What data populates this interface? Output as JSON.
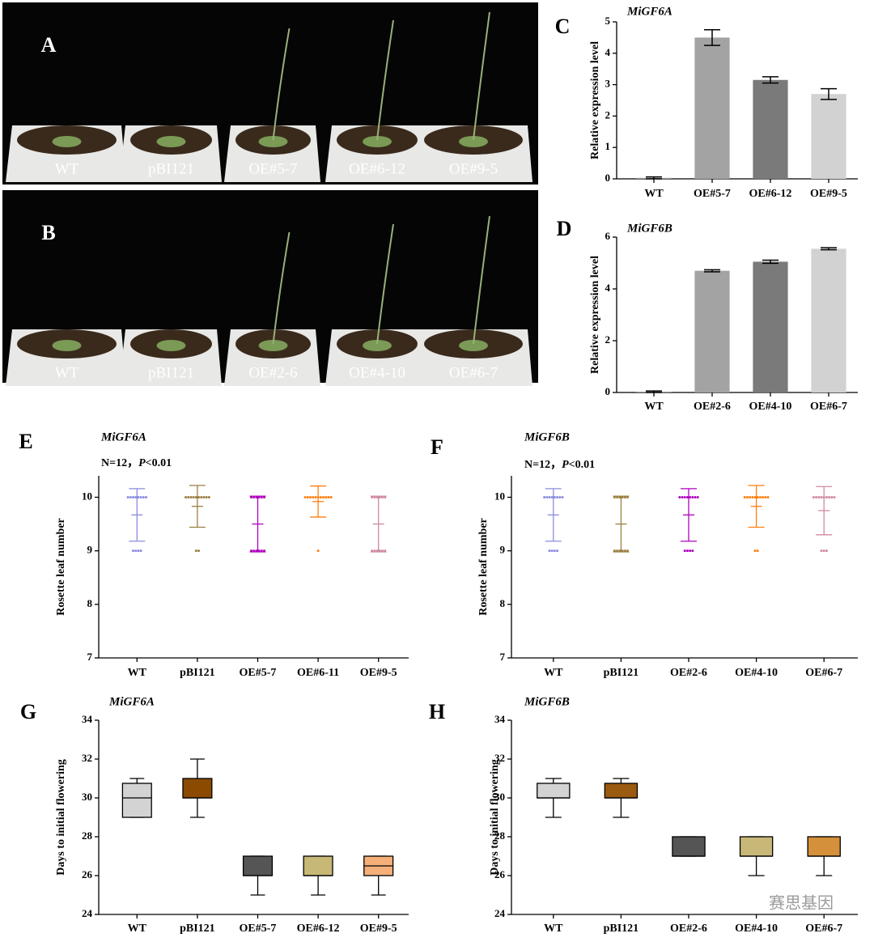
{
  "photos": [
    {
      "panel": "A",
      "pots": [
        "WT",
        "pBI121",
        "OE#5-7",
        "OE#6-12",
        "OE#9-5"
      ]
    },
    {
      "panel": "B",
      "pots": [
        "WT",
        "pBI121",
        "OE#2-6",
        "OE#4-10",
        "OE#6-7"
      ]
    }
  ],
  "chart_data": [
    {
      "type": "bar",
      "panel": "C",
      "title": "MiGF6A",
      "ylabel": "Relative expression level",
      "categories": [
        "WT",
        "OE#5-7",
        "OE#6-12",
        "OE#9-5"
      ],
      "values": [
        0.03,
        4.5,
        3.15,
        2.7
      ],
      "errors": [
        0.03,
        0.25,
        0.1,
        0.17
      ],
      "colors": [
        "#9a9a9a",
        "#a3a3a3",
        "#7a7a7a",
        "#d2d2d2"
      ],
      "ylim": [
        0,
        5
      ],
      "yticks": [
        0,
        1,
        2,
        3,
        4,
        5
      ]
    },
    {
      "type": "bar",
      "panel": "D",
      "title": "MiGF6B",
      "ylabel": "Relative expression level",
      "categories": [
        "WT",
        "OE#2-6",
        "OE#4-10",
        "OE#6-7"
      ],
      "values": [
        0.03,
        4.7,
        5.05,
        5.55
      ],
      "errors": [
        0.03,
        0.04,
        0.06,
        0.04
      ],
      "colors": [
        "#9a9a9a",
        "#a3a3a3",
        "#7a7a7a",
        "#d2d2d2"
      ],
      "ylim": [
        0,
        6
      ],
      "yticks": [
        0,
        2,
        4,
        6
      ]
    },
    {
      "type": "strip",
      "panel": "E",
      "title": "MiGF6A",
      "annotation": [
        "N=12，",
        "P",
        "<0.01"
      ],
      "ylabel": "Rosette leaf number",
      "categories": [
        "WT",
        "pBI121",
        "OE#5-7",
        "OE#6-11",
        "OE#9-5"
      ],
      "groups": [
        {
          "color": "#8c8ce0",
          "mean": 9.67,
          "sd": 0.49,
          "points": [
            10,
            10,
            10,
            10,
            10,
            10,
            10,
            10,
            9,
            9,
            9,
            9
          ]
        },
        {
          "color": "#9a8040",
          "mean": 9.83,
          "sd": 0.39,
          "points": [
            10,
            10,
            10,
            10,
            10,
            10,
            10,
            10,
            10,
            10,
            9,
            9
          ]
        },
        {
          "color": "#b000c0",
          "mean": 9.5,
          "sd": 0.52,
          "points": [
            10,
            10,
            10,
            10,
            10,
            10,
            9,
            9,
            9,
            9,
            9,
            9
          ]
        },
        {
          "color": "#ff7f0e",
          "mean": 9.92,
          "sd": 0.29,
          "points": [
            10,
            10,
            10,
            10,
            10,
            10,
            10,
            10,
            10,
            10,
            10,
            9
          ]
        },
        {
          "color": "#d08aa0",
          "mean": 9.5,
          "sd": 0.52,
          "points": [
            10,
            10,
            10,
            10,
            10,
            10,
            9,
            9,
            9,
            9,
            9,
            9
          ]
        }
      ],
      "ylim": [
        7,
        10.4
      ],
      "yticks": [
        7,
        8,
        9,
        10
      ]
    },
    {
      "type": "strip",
      "panel": "F",
      "title": "MiGF6B",
      "annotation": [
        "N=12，",
        "P",
        "<0.01"
      ],
      "ylabel": "Rosette leaf number",
      "categories": [
        "WT",
        "pBI121",
        "OE#2-6",
        "OE#4-10",
        "OE#6-7"
      ],
      "groups": [
        {
          "color": "#8c8ce0",
          "mean": 9.67,
          "sd": 0.49,
          "points": [
            10,
            10,
            10,
            10,
            10,
            10,
            10,
            10,
            9,
            9,
            9,
            9
          ]
        },
        {
          "color": "#9a8040",
          "mean": 9.5,
          "sd": 0.52,
          "points": [
            10,
            10,
            10,
            10,
            10,
            10,
            9,
            9,
            9,
            9,
            9,
            9
          ]
        },
        {
          "color": "#b000c0",
          "mean": 9.67,
          "sd": 0.49,
          "points": [
            10,
            10,
            10,
            10,
            10,
            10,
            10,
            10,
            9,
            9,
            9,
            9
          ]
        },
        {
          "color": "#ff7f0e",
          "mean": 9.83,
          "sd": 0.39,
          "points": [
            10,
            10,
            10,
            10,
            10,
            10,
            10,
            10,
            10,
            10,
            9,
            9
          ]
        },
        {
          "color": "#d08aa0",
          "mean": 9.75,
          "sd": 0.45,
          "points": [
            10,
            10,
            10,
            10,
            10,
            10,
            10,
            10,
            10,
            9,
            9,
            9
          ]
        }
      ],
      "ylim": [
        7,
        10.4
      ],
      "yticks": [
        7,
        8,
        9,
        10
      ]
    },
    {
      "type": "box",
      "panel": "G",
      "title": "MiGF6A",
      "ylabel": "Days to initial flowering",
      "categories": [
        "WT",
        "pBI121",
        "OE#5-7",
        "OE#6-12",
        "OE#9-5"
      ],
      "boxes": [
        {
          "color": "#d3d3d3",
          "min": 29,
          "q1": 29,
          "median": 30,
          "q3": 30.75,
          "max": 31
        },
        {
          "color": "#8b4a00",
          "min": 29,
          "q1": 30,
          "median": 30,
          "q3": 31,
          "max": 32
        },
        {
          "color": "#555555",
          "min": 25,
          "q1": 26,
          "median": 26,
          "q3": 27,
          "max": 27
        },
        {
          "color": "#c8b878",
          "min": 25,
          "q1": 26,
          "median": 26,
          "q3": 27,
          "max": 27
        },
        {
          "color": "#f5b07a",
          "min": 25,
          "q1": 26,
          "median": 26.5,
          "q3": 27,
          "max": 27
        }
      ],
      "ylim": [
        24,
        34
      ],
      "yticks": [
        24,
        26,
        28,
        30,
        32,
        34
      ]
    },
    {
      "type": "box",
      "panel": "H",
      "title": "MiGF6B",
      "ylabel": "Days to initial flowering",
      "categories": [
        "WT",
        "pBI121",
        "OE#2-6",
        "OE#4-10",
        "OE#6-7"
      ],
      "boxes": [
        {
          "color": "#d3d3d3",
          "min": 29,
          "q1": 30,
          "median": 30,
          "q3": 30.75,
          "max": 31
        },
        {
          "color": "#9a5a10",
          "min": 29,
          "q1": 30,
          "median": 30,
          "q3": 30.75,
          "max": 31
        },
        {
          "color": "#555555",
          "min": 27,
          "q1": 27,
          "median": 27,
          "q3": 28,
          "max": 28
        },
        {
          "color": "#c8b878",
          "min": 26,
          "q1": 27,
          "median": 27,
          "q3": 28,
          "max": 28
        },
        {
          "color": "#d4903a",
          "min": 26,
          "q1": 27,
          "median": 27,
          "q3": 28,
          "max": 28
        }
      ],
      "ylim": [
        24,
        34
      ],
      "yticks": [
        24,
        26,
        28,
        30,
        32,
        34
      ]
    }
  ],
  "watermark": "赛思基因"
}
